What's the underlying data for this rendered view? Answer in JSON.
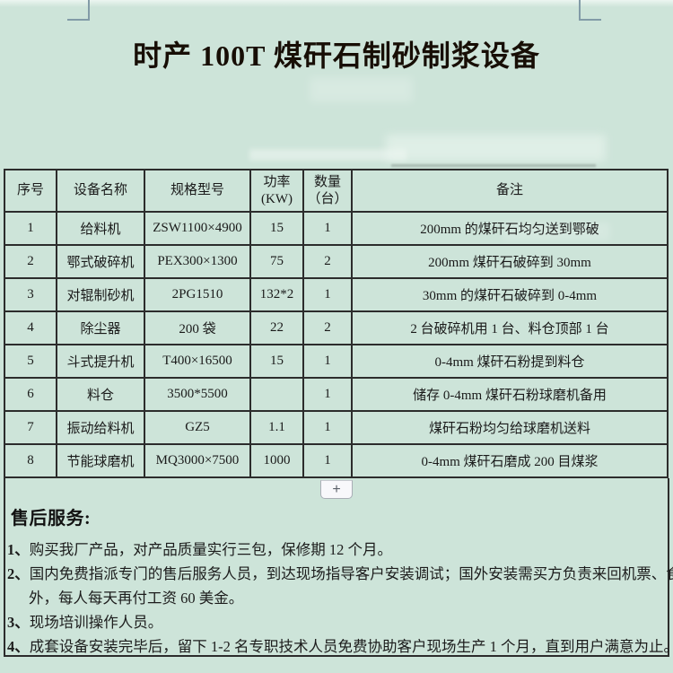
{
  "page": {
    "title": "时产 100T 煤矸石制砂制浆设备",
    "background_color": "#cde4d9",
    "table_border_color": "#2c2c2c",
    "crop_mark_color": "#829ba7"
  },
  "table": {
    "col_keys": [
      "no",
      "name",
      "model",
      "power",
      "qty",
      "remark"
    ],
    "headers": [
      "序号",
      "设备名称",
      "规格型号",
      "功率\n(KW)",
      "数量\n（台）",
      "备注"
    ],
    "rows": [
      [
        "1",
        "给料机",
        "ZSW1100×4900",
        "15",
        "1",
        "200mm 的煤矸石均匀送到鄂破"
      ],
      [
        "2",
        "鄂式破碎机",
        "PEX300×1300",
        "75",
        "2",
        "200mm 煤矸石破碎到 30mm"
      ],
      [
        "3",
        "对辊制砂机",
        "2PG1510",
        "132*2",
        "1",
        "30mm 的煤矸石破碎到 0-4mm"
      ],
      [
        "4",
        "除尘器",
        "200 袋",
        "22",
        "2",
        "2 台破碎机用 1 台、料仓顶部 1 台"
      ],
      [
        "5",
        "斗式提升机",
        "T400×16500",
        "15",
        "1",
        "0-4mm 煤矸石粉提到料仓"
      ],
      [
        "6",
        "料仓",
        "3500*5500",
        "",
        "1",
        "储存 0-4mm 煤矸石粉球磨机备用"
      ],
      [
        "7",
        "振动给料机",
        "GZ5",
        "1.1",
        "1",
        "煤矸石粉均匀给球磨机送料"
      ],
      [
        "8",
        "节能球磨机",
        "MQ3000×7500",
        "1000",
        "1",
        "0-4mm 煤矸石磨成 200 目煤浆"
      ]
    ]
  },
  "expander": {
    "label": "+"
  },
  "after_sales": {
    "heading": "售后服务:",
    "items": [
      {
        "num": "1、",
        "text": "购买我厂产品，对产品质量实行三包，保修期 12 个月。"
      },
      {
        "num": "2、",
        "text": "国内免费指派专门的售后服务人员，到达现场指导客户安装调试；国外安装需买方负责来回机票、食宿",
        "text2": "外，每人每天再付工资 60 美金。"
      },
      {
        "num": "3、",
        "text": "现场培训操作人员。"
      },
      {
        "num": "4、",
        "text": "成套设备安装完毕后，留下 1-2 名专职技术人员免费协助客户现场生产 1 个月，直到用户满意为止。"
      }
    ]
  }
}
